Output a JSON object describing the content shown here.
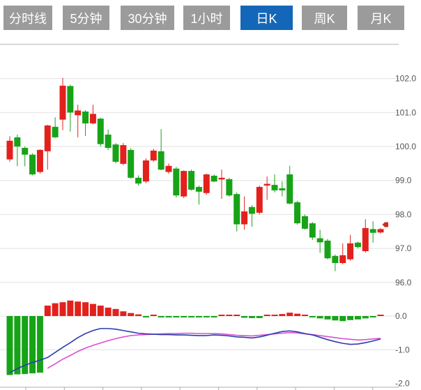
{
  "tabs": {
    "items": [
      {
        "label": "分时线",
        "active": false
      },
      {
        "label": "5分钟",
        "active": false
      },
      {
        "label": "30分钟",
        "active": false
      },
      {
        "label": "1小时",
        "active": false
      },
      {
        "label": "日K",
        "active": true
      },
      {
        "label": "周K",
        "active": false
      },
      {
        "label": "月K",
        "active": false
      }
    ]
  },
  "colors": {
    "up": "#e2211c",
    "down": "#17a317",
    "dif_line": "#2b3cae",
    "dea_line": "#d94fd0",
    "tab_bg": "#9b9b9b",
    "tab_active_bg": "#1467b8",
    "tab_text": "#ffffff",
    "grid": "#e2e2e2",
    "axis_line": "#c9c9c9",
    "tick": "#aaaaaa",
    "axis_text": "#555555",
    "price_marker": "#d02a1e"
  },
  "main_axis": {
    "labels": [
      "102.0",
      "101.0",
      "100.0",
      "99.0",
      "98.0",
      "97.0",
      "96.0"
    ],
    "values": [
      102,
      101,
      100,
      99,
      98,
      97,
      96
    ]
  },
  "sub_axis": {
    "labels": [
      "0.0",
      "-1.0",
      "-2.0"
    ],
    "values": [
      0,
      -1,
      -2
    ]
  },
  "price_marker": {
    "price": 97.7
  },
  "chart_data": [
    {
      "type": "candlestick",
      "note": "ohlc = [open, high, low, close] per daily bar, red=up green=down",
      "ylim": [
        95.9,
        102.3
      ],
      "ohlc": [
        [
          99.62,
          100.3,
          99.55,
          100.17
        ],
        [
          100.27,
          100.35,
          99.42,
          100.0
        ],
        [
          99.96,
          100.0,
          99.42,
          99.76
        ],
        [
          99.76,
          99.8,
          99.15,
          99.18
        ],
        [
          99.25,
          99.92,
          99.2,
          99.9
        ],
        [
          99.86,
          100.64,
          99.32,
          100.62
        ],
        [
          100.58,
          100.86,
          100.25,
          100.27
        ],
        [
          100.79,
          102.02,
          100.48,
          101.79
        ],
        [
          101.78,
          101.82,
          100.44,
          101.0
        ],
        [
          100.92,
          101.23,
          100.27,
          101.06
        ],
        [
          101.03,
          101.07,
          100.31,
          100.68
        ],
        [
          100.68,
          101.23,
          100.65,
          100.96
        ],
        [
          100.82,
          100.85,
          100.0,
          100.07
        ],
        [
          100.35,
          100.5,
          99.9,
          99.96
        ],
        [
          100.06,
          100.1,
          99.5,
          99.55
        ],
        [
          99.49,
          100.1,
          99.45,
          100.04
        ],
        [
          99.9,
          99.95,
          99.05,
          99.08
        ],
        [
          99.08,
          99.15,
          98.85,
          98.91
        ],
        [
          98.97,
          99.65,
          98.92,
          99.59
        ],
        [
          99.59,
          99.93,
          99.55,
          99.88
        ],
        [
          99.86,
          100.51,
          99.3,
          99.32
        ],
        [
          99.25,
          99.5,
          99.2,
          99.43
        ],
        [
          99.35,
          99.4,
          98.5,
          98.56
        ],
        [
          98.53,
          99.3,
          98.48,
          99.28
        ],
        [
          99.28,
          99.32,
          98.7,
          98.73
        ],
        [
          98.81,
          98.85,
          98.29,
          98.67
        ],
        [
          98.63,
          99.2,
          98.58,
          99.18
        ],
        [
          99.14,
          99.18,
          98.95,
          98.97
        ],
        [
          99.03,
          99.32,
          98.46,
          99.08
        ],
        [
          99.04,
          99.08,
          98.52,
          98.56
        ],
        [
          98.6,
          98.65,
          97.5,
          97.71
        ],
        [
          97.71,
          98.53,
          97.55,
          98.09
        ],
        [
          98.22,
          98.27,
          97.64,
          98.02
        ],
        [
          98.05,
          98.85,
          98.0,
          98.81
        ],
        [
          98.85,
          99.12,
          98.43,
          98.9
        ],
        [
          98.87,
          99.18,
          98.65,
          98.71
        ],
        [
          98.77,
          98.97,
          98.53,
          98.71
        ],
        [
          99.18,
          99.43,
          98.3,
          98.32
        ],
        [
          98.36,
          98.4,
          97.7,
          97.74
        ],
        [
          97.95,
          98.0,
          97.55,
          97.58
        ],
        [
          97.74,
          97.78,
          97.25,
          97.32
        ],
        [
          97.3,
          97.55,
          96.87,
          97.18
        ],
        [
          97.23,
          97.28,
          96.68,
          96.71
        ],
        [
          96.78,
          96.82,
          96.33,
          96.57
        ],
        [
          96.57,
          97.15,
          96.53,
          96.8
        ],
        [
          96.68,
          97.4,
          96.64,
          97.15
        ],
        [
          97.17,
          97.2,
          97.0,
          97.04
        ],
        [
          96.92,
          97.86,
          96.88,
          97.6
        ],
        [
          97.57,
          97.8,
          97.17,
          97.46
        ],
        [
          97.47,
          97.6,
          97.44,
          97.57
        ]
      ]
    },
    {
      "type": "macd",
      "ylim": [
        -2.2,
        0.6
      ],
      "hist": [
        -1.75,
        -1.73,
        -1.72,
        -1.7,
        -1.68,
        0.31,
        0.38,
        0.41,
        0.46,
        0.43,
        0.41,
        0.36,
        0.31,
        0.25,
        0.21,
        0.14,
        0.09,
        0.05,
        -0.02,
        0.01,
        -0.03,
        -0.03,
        -0.02,
        -0.04,
        -0.04,
        -0.03,
        -0.04,
        -0.03,
        0.02,
        0.03,
        0.02,
        -0.05,
        -0.06,
        -0.06,
        0.0,
        0.04,
        0.06,
        0.1,
        0.07,
        0.03,
        -0.03,
        -0.07,
        -0.1,
        -0.13,
        -0.15,
        -0.12,
        -0.1,
        -0.07,
        -0.04,
        0.04
      ],
      "dif": [
        -1.68,
        -1.56,
        -1.46,
        -1.38,
        -1.31,
        -1.23,
        -1.08,
        -0.93,
        -0.79,
        -0.64,
        -0.52,
        -0.43,
        -0.37,
        -0.37,
        -0.39,
        -0.43,
        -0.47,
        -0.51,
        -0.53,
        -0.54,
        -0.55,
        -0.55,
        -0.56,
        -0.56,
        -0.57,
        -0.58,
        -0.58,
        -0.56,
        -0.57,
        -0.59,
        -0.62,
        -0.63,
        -0.65,
        -0.62,
        -0.57,
        -0.51,
        -0.46,
        -0.44,
        -0.47,
        -0.52,
        -0.56,
        -0.63,
        -0.7,
        -0.76,
        -0.81,
        -0.84,
        -0.83,
        -0.79,
        -0.74,
        -0.68
      ],
      "dea_start_index": 5,
      "dea": [
        -1.55,
        -1.42,
        -1.28,
        -1.17,
        -1.05,
        -0.95,
        -0.87,
        -0.8,
        -0.73,
        -0.67,
        -0.62,
        -0.58,
        -0.56,
        -0.55,
        -0.54,
        -0.53,
        -0.52,
        -0.52,
        -0.51,
        -0.51,
        -0.52,
        -0.52,
        -0.52,
        -0.53,
        -0.55,
        -0.57,
        -0.58,
        -0.59,
        -0.57,
        -0.55,
        -0.53,
        -0.51,
        -0.49,
        -0.5,
        -0.53,
        -0.55,
        -0.58,
        -0.61,
        -0.64,
        -0.67,
        -0.69,
        -0.71,
        -0.7,
        -0.68,
        -0.66
      ]
    }
  ]
}
